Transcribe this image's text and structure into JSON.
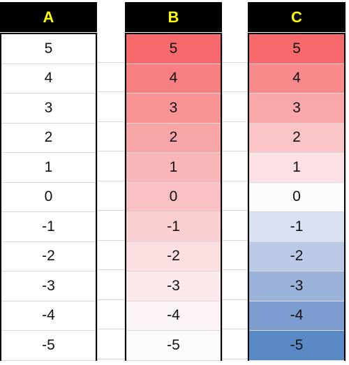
{
  "headers": [
    "A",
    "B",
    "C"
  ],
  "values": [
    "5",
    "4",
    "3",
    "2",
    "1",
    "0",
    "-1",
    "-2",
    "-3",
    "-4",
    "-5"
  ],
  "colors": {
    "header_bg": "#000000",
    "header_text": "#ffff00",
    "B": [
      "#f8696b",
      "#f87f81",
      "#f89395",
      "#f8a5a7",
      "#f9b7b9",
      "#f9c1c3",
      "#fad0d2",
      "#fbdfe1",
      "#fbe9eb",
      "#fcf3f5",
      "#fcfcff"
    ],
    "C": [
      "#f8696b",
      "#f98a8c",
      "#faa7a9",
      "#fbc4c6",
      "#fbe1e3",
      "#fcfcff",
      "#d9e1f2",
      "#b9c9e6",
      "#9bb3db",
      "#7d9ccf",
      "#5a8ac6"
    ]
  }
}
